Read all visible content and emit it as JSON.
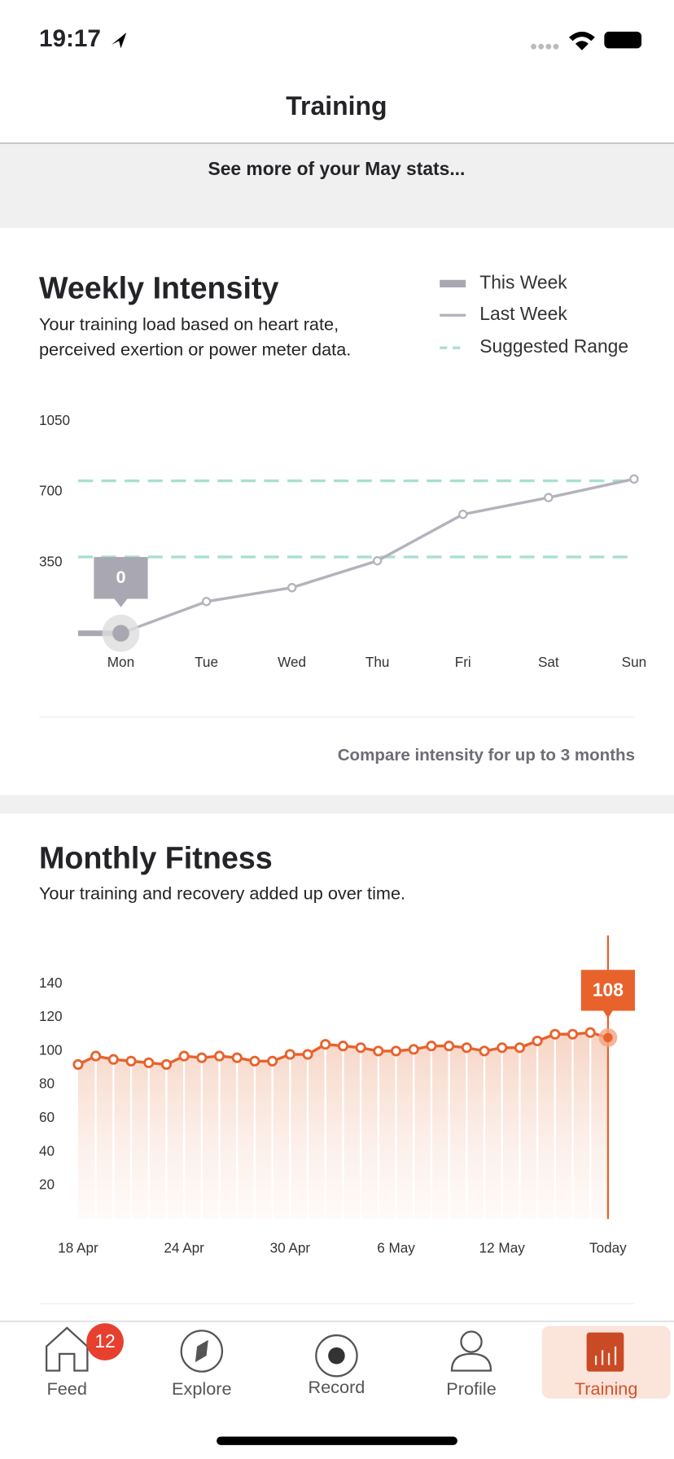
{
  "status_bar": {
    "time": "19:17"
  },
  "header": {
    "title": "Training"
  },
  "banner": {
    "text": "See more of your May stats..."
  },
  "chart_data": [
    {
      "type": "line",
      "title": "Weekly Intensity",
      "subtitle": [
        "Your training load based on heart rate,",
        "perceived exertion or power meter data."
      ],
      "categories": [
        "Mon",
        "Tue",
        "Wed",
        "Thu",
        "Fri",
        "Sat",
        "Sun"
      ],
      "series": [
        {
          "name": "This Week",
          "color": "#a9a8b2",
          "values": [
            0,
            null,
            null,
            null,
            null,
            null,
            null
          ]
        },
        {
          "name": "Last Week",
          "color": "#b3b2bd",
          "values": [
            0,
            157,
            226,
            359,
            589,
            672,
            764
          ]
        }
      ],
      "range_band": {
        "name": "Suggested Range",
        "color": "#a8e0cf",
        "values": [
          378,
          755
        ]
      },
      "annotation": {
        "series": 0,
        "index": 0
      },
      "ylim": [
        0,
        1050
      ],
      "yticks": [
        350,
        700,
        1050
      ],
      "footer_link": "Compare intensity for up to 3 months"
    },
    {
      "type": "area",
      "title": "Monthly Fitness",
      "subtitle": [
        "Your training and recovery added up over time."
      ],
      "categories": [
        "18 Apr",
        null,
        null,
        null,
        null,
        null,
        "24 Apr",
        null,
        null,
        null,
        null,
        null,
        "30 Apr",
        null,
        null,
        null,
        null,
        null,
        "6 May",
        null,
        null,
        null,
        null,
        null,
        "12 May",
        null,
        null,
        null,
        null,
        null,
        "Today"
      ],
      "series": [
        {
          "color": "#e8622c",
          "values": [
            92,
            97,
            95,
            94,
            93,
            92,
            97,
            96,
            97,
            96,
            94,
            94,
            98,
            98,
            104,
            103,
            102,
            100,
            100,
            101,
            103,
            103,
            102,
            100,
            102,
            102,
            106,
            110,
            110,
            111,
            108
          ]
        }
      ],
      "annotation": {
        "series": 0,
        "index": 30
      },
      "ylim": [
        0,
        140
      ],
      "yticks": [
        20,
        40,
        60,
        80,
        100,
        120,
        140
      ]
    }
  ],
  "tab_bar": {
    "tabs": [
      {
        "label": "Feed",
        "badge": "12"
      },
      {
        "label": "Explore"
      },
      {
        "label": "Record"
      },
      {
        "label": "Profile"
      },
      {
        "label": "Training",
        "selected": true
      }
    ]
  }
}
